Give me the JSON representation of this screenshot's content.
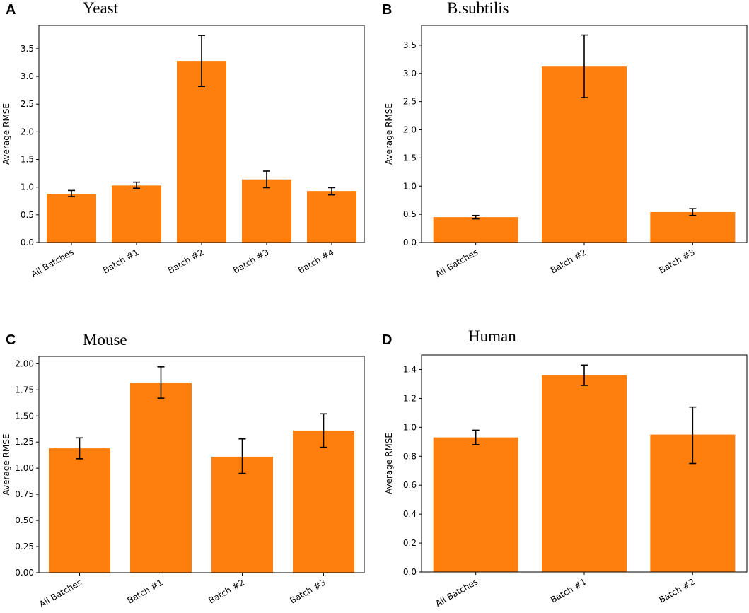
{
  "colors": {
    "bar": "#ff7f0e",
    "error": "#000000"
  },
  "chart_data": [
    {
      "panel": "A",
      "title": "Yeast",
      "type": "bar",
      "ylabel": "Average RMSE",
      "xlabel": "",
      "categories": [
        "All Batches",
        "Batch #1",
        "Batch #2",
        "Batch #3",
        "Batch #4"
      ],
      "values": [
        0.88,
        1.03,
        3.28,
        1.14,
        0.93
      ],
      "error_low": [
        0.83,
        0.98,
        2.82,
        0.99,
        0.86
      ],
      "error_high": [
        0.94,
        1.09,
        3.74,
        1.29,
        0.99
      ],
      "ylim": [
        0,
        3.92
      ],
      "yticks": [
        "0.0",
        "0.5",
        "1.0",
        "1.5",
        "2.0",
        "2.5",
        "3.0",
        "3.5"
      ],
      "ytick_values": [
        0,
        0.5,
        1.0,
        1.5,
        2.0,
        2.5,
        3.0,
        3.5
      ]
    },
    {
      "panel": "B",
      "title": "B.subtilis",
      "type": "bar",
      "ylabel": "Average RMSE",
      "xlabel": "",
      "categories": [
        "All Batches",
        "Batch #2",
        "Batch #3"
      ],
      "values": [
        0.45,
        3.12,
        0.54
      ],
      "error_low": [
        0.42,
        2.57,
        0.48
      ],
      "error_high": [
        0.48,
        3.68,
        0.6
      ],
      "ylim": [
        0,
        3.85
      ],
      "yticks": [
        "0.0",
        "0.5",
        "1.0",
        "1.5",
        "2.0",
        "2.5",
        "3.0",
        "3.5"
      ],
      "ytick_values": [
        0,
        0.5,
        1.0,
        1.5,
        2.0,
        2.5,
        3.0,
        3.5
      ]
    },
    {
      "panel": "C",
      "title": "Mouse",
      "type": "bar",
      "ylabel": "Average RMSE",
      "xlabel": "",
      "categories": [
        "All Batches",
        "Batch #1",
        "Batch #2",
        "Batch #3"
      ],
      "values": [
        1.19,
        1.82,
        1.11,
        1.36
      ],
      "error_low": [
        1.09,
        1.67,
        0.95,
        1.2
      ],
      "error_high": [
        1.29,
        1.97,
        1.28,
        1.52
      ],
      "ylim": [
        0,
        2.07
      ],
      "yticks": [
        "0.00",
        "0.25",
        "0.50",
        "0.75",
        "1.00",
        "1.25",
        "1.50",
        "1.75",
        "2.00"
      ],
      "ytick_values": [
        0,
        0.25,
        0.5,
        0.75,
        1.0,
        1.25,
        1.5,
        1.75,
        2.0
      ]
    },
    {
      "panel": "D",
      "title": "Human",
      "type": "bar",
      "ylabel": "Average RMSE",
      "xlabel": "",
      "categories": [
        "All Batches",
        "Batch #1",
        "Batch #2"
      ],
      "values": [
        0.93,
        1.36,
        0.95
      ],
      "error_low": [
        0.88,
        1.29,
        0.75
      ],
      "error_high": [
        0.98,
        1.43,
        1.14
      ],
      "ylim": [
        0,
        1.5
      ],
      "yticks": [
        "0.0",
        "0.2",
        "0.4",
        "0.6",
        "0.8",
        "1.0",
        "1.2",
        "1.4"
      ],
      "ytick_values": [
        0,
        0.2,
        0.4,
        0.6,
        0.8,
        1.0,
        1.2,
        1.4
      ]
    }
  ]
}
